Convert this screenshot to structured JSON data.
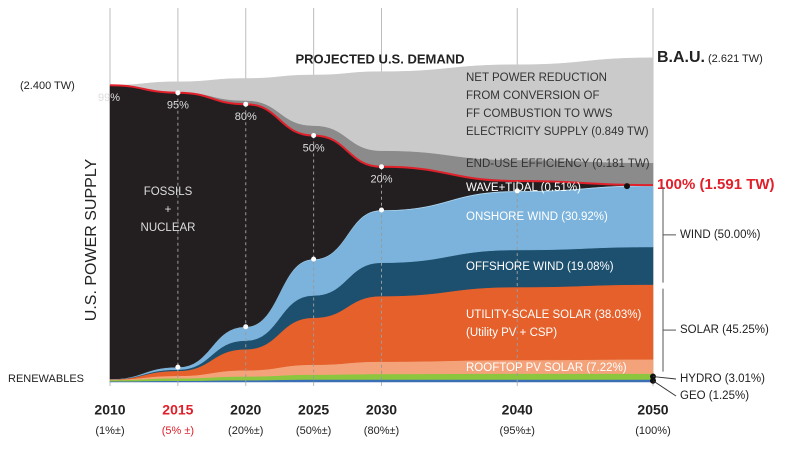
{
  "chart_data": {
    "type": "stacked_area",
    "title": "PROJECTED U.S. DEMAND",
    "y_label": "U.S. POWER SUPPLY",
    "x": [
      2010,
      2015,
      2020,
      2025,
      2030,
      2040,
      2050
    ],
    "x_sublabels": [
      "(1%±)",
      "(5% ±)",
      "(20%±)",
      "(50%±)",
      "(80%±)",
      "(95%±)",
      "(100%)"
    ],
    "highlight_x": 2015,
    "highlight_color": "#e0202a",
    "ylim": [
      0,
      2.75
    ],
    "start_label": "(2.400 TW)",
    "bau_label": "B.A.U.",
    "bau_value": "(2.621 TW)",
    "target_label": "100% (1.591 TW)",
    "target_color": "#e0202a",
    "renewables_label": "RENEWABLES",
    "fossil_share_values": [
      99,
      95,
      80,
      50,
      20
    ],
    "fossil_share_labels": [
      "99%",
      "95%",
      "80%",
      "50%",
      "20%"
    ],
    "groups": [
      {
        "label": "WIND (50.00%)"
      },
      {
        "label": "SOLAR (45.25%)"
      }
    ],
    "series": [
      {
        "name": "GEO (1.25%)",
        "color": "#3a6fb5",
        "values": [
          0.006,
          0.01,
          0.015,
          0.02,
          0.02,
          0.02,
          0.02
        ]
      },
      {
        "name": "HYDRO (3.01%)",
        "color": "#8cc63f",
        "values": [
          0.01,
          0.02,
          0.03,
          0.04,
          0.045,
          0.048,
          0.048
        ]
      },
      {
        "name": "ROOFTOP PV SOLAR (7.22%)",
        "color": "#f4a27a",
        "values": [
          0.004,
          0.02,
          0.05,
          0.08,
          0.1,
          0.11,
          0.115
        ]
      },
      {
        "name": [
          "UTILITY-SCALE SOLAR (38.03%)",
          "(Utility PV + CSP)"
        ],
        "color": "#e5602a",
        "values": [
          0.002,
          0.04,
          0.17,
          0.38,
          0.53,
          0.59,
          0.605
        ]
      },
      {
        "name": "OFFSHORE WIND (19.08%)",
        "color": "#1d4f6e",
        "values": [
          0.001,
          0.01,
          0.07,
          0.18,
          0.27,
          0.3,
          0.304
        ]
      },
      {
        "name": "ONSHORE WIND (30.92%)",
        "color": "#7bb3dc",
        "values": [
          0.001,
          0.02,
          0.11,
          0.29,
          0.42,
          0.47,
          0.492
        ]
      },
      {
        "name": "WAVE+TIDAL (0.51%)",
        "color": "#aed6f0",
        "values": [
          0,
          0,
          0.002,
          0.004,
          0.006,
          0.008,
          0.008
        ]
      },
      {
        "name": [
          "FOSSILS",
          "+",
          "NUCLEAR"
        ],
        "color": "#231f20",
        "values": [
          2.376,
          2.22,
          1.8,
          1.0,
          0.35,
          0.08,
          0
        ]
      },
      {
        "name": "END-USE EFFICIENCY (0.181 TW)",
        "color": "#8b8b8b",
        "values": [
          0,
          0.005,
          0.03,
          0.08,
          0.13,
          0.17,
          0.181
        ]
      },
      {
        "name": [
          "NET POWER REDUCTION",
          "FROM CONVERSION OF",
          "FF COMBUSTION TO WWS",
          "ELECTRICITY SUPPLY (0.849 TW)"
        ],
        "color": "#cbcaca",
        "values": [
          0,
          0.083,
          0.178,
          0.409,
          0.639,
          0.77,
          0.849
        ]
      }
    ]
  }
}
